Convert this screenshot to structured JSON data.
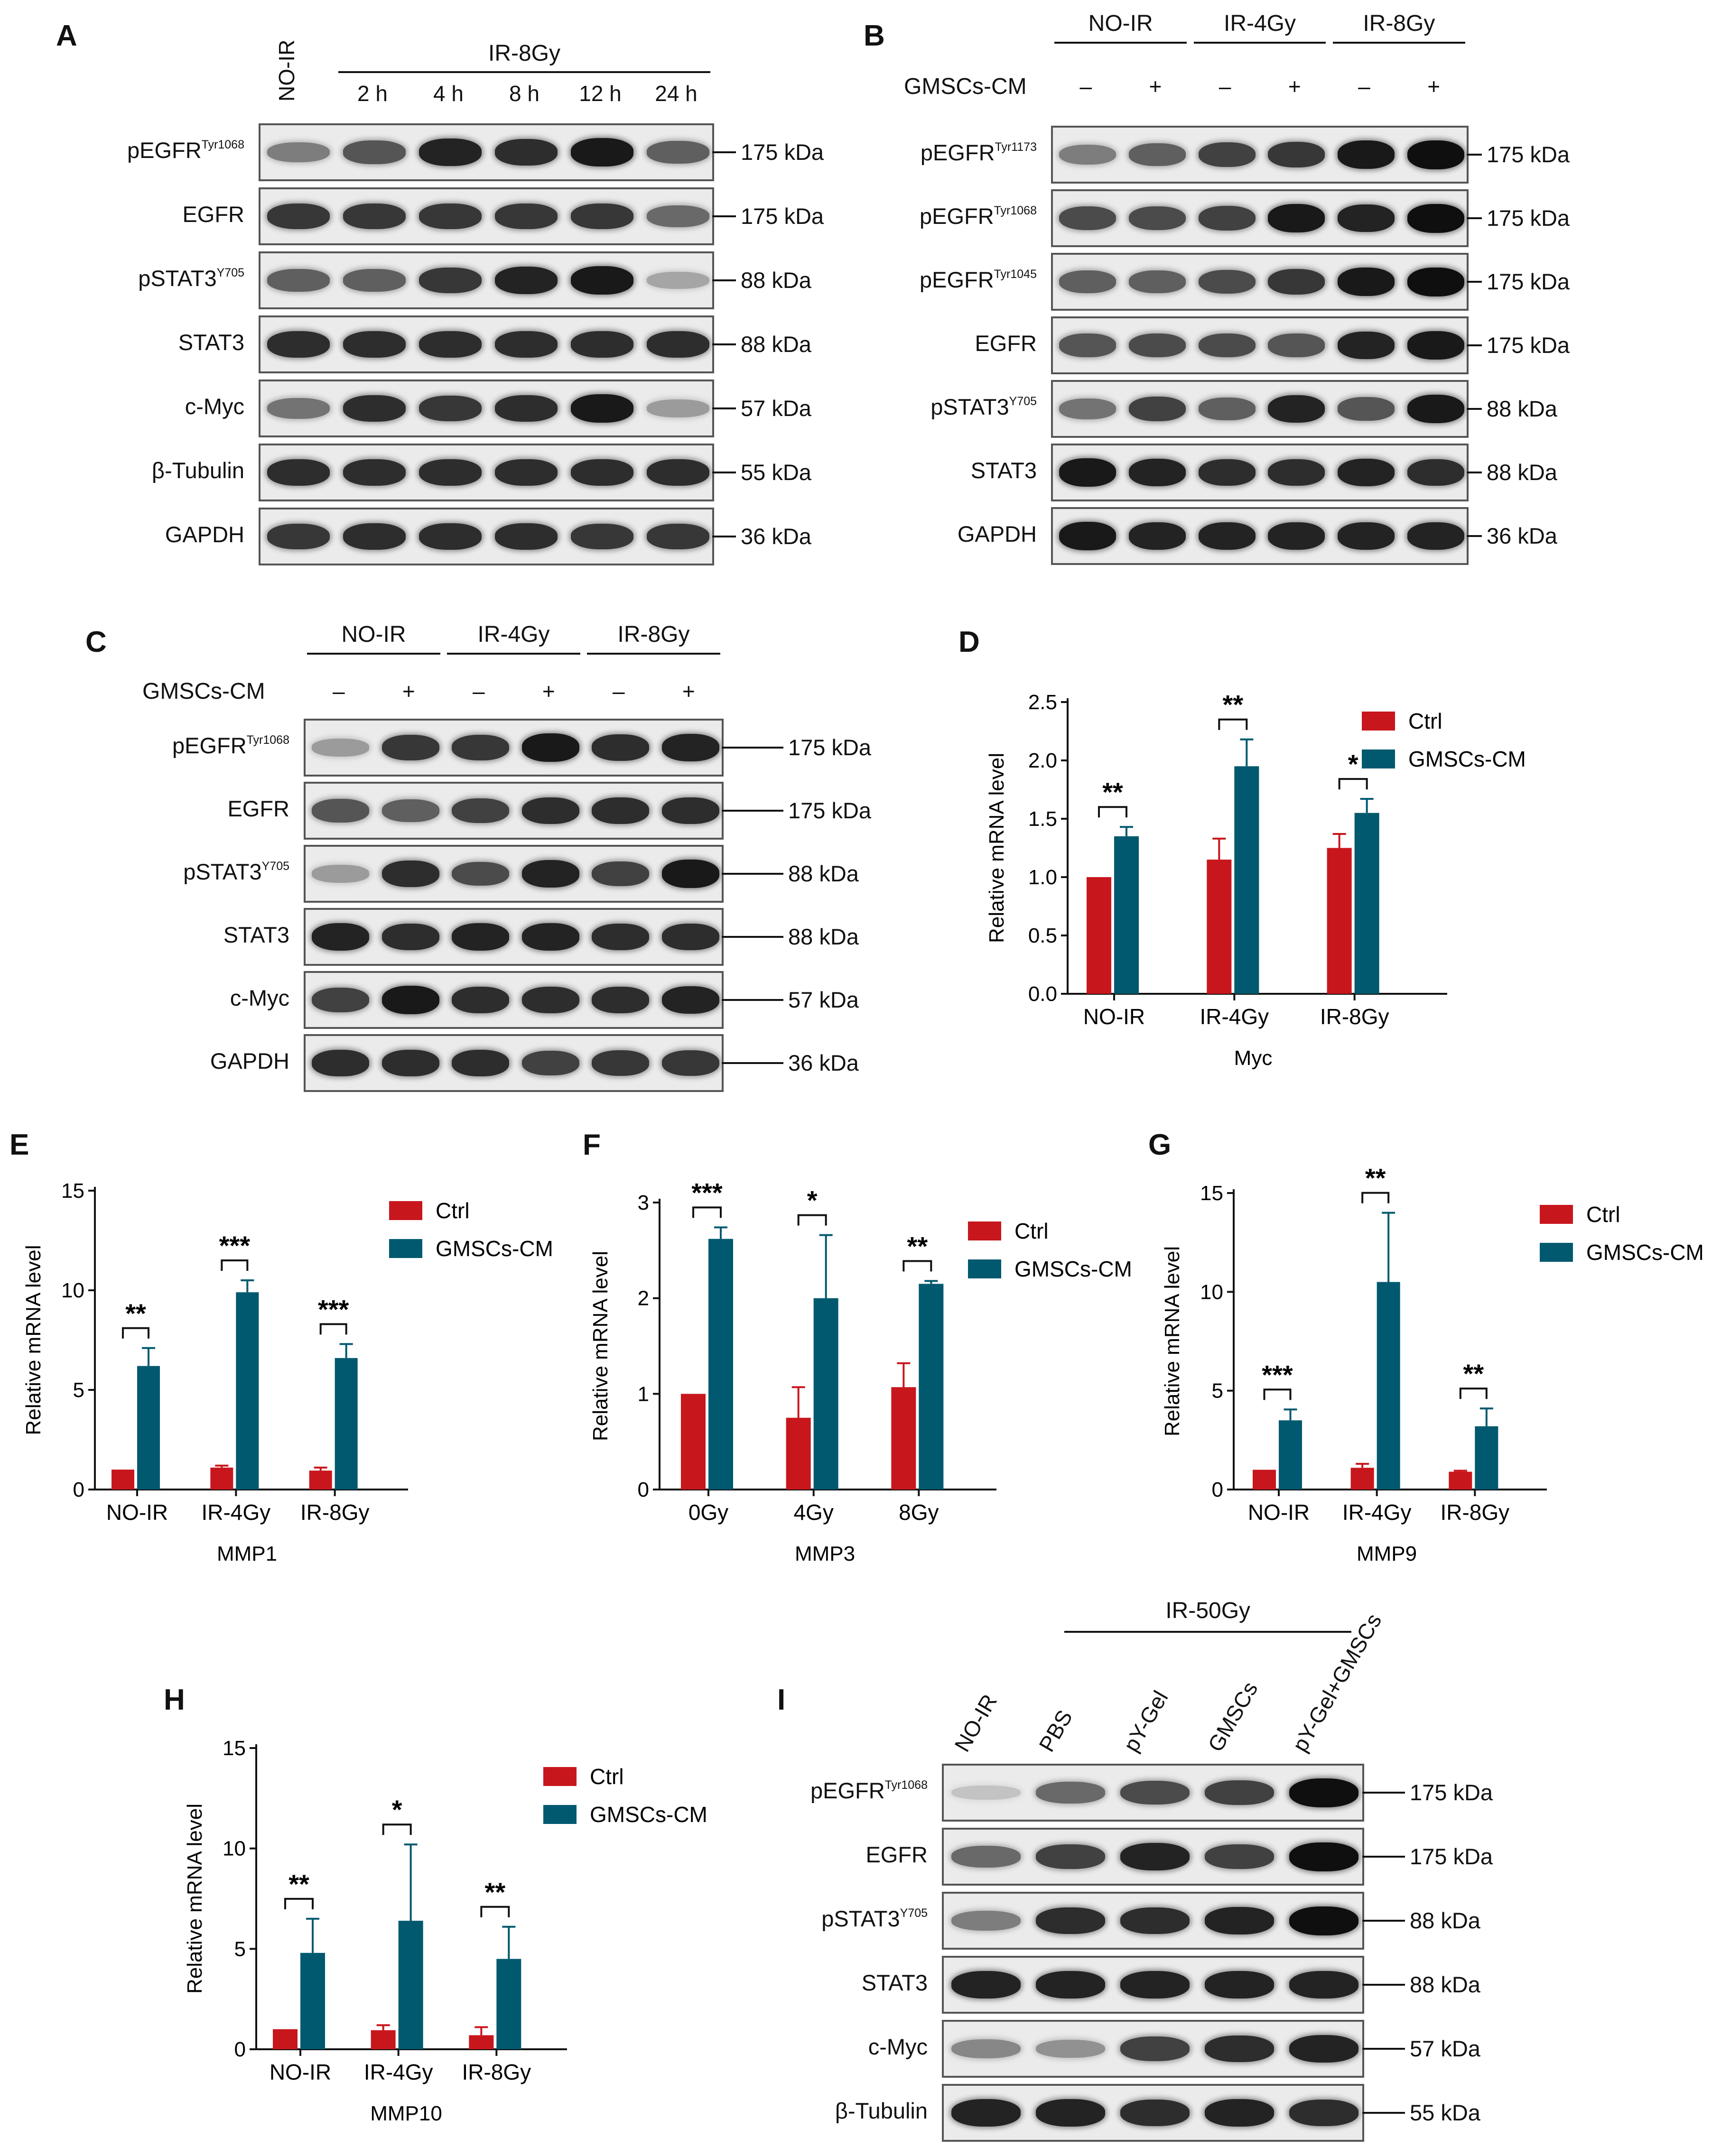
{
  "colors": {
    "ctrl": "#c8161d",
    "gmsc": "#00596e",
    "axis": "#111111",
    "blot_bg": "#ebebeb",
    "band_dark": "#161616"
  },
  "panel_letters": [
    "A",
    "B",
    "C",
    "D",
    "E",
    "F",
    "G",
    "H",
    "I"
  ],
  "panels": {
    "A": {
      "letter": "A",
      "no_ir": "NO-IR",
      "group": "IR-8Gy",
      "lanes": [
        "2 h",
        "4 h",
        "8 h",
        "12 h",
        "24 h"
      ],
      "rows": [
        {
          "name": "pEGFR",
          "sup": "Tyr1068",
          "marker": "175 kDa",
          "intensity": [
            0.45,
            0.65,
            0.9,
            0.85,
            0.95,
            0.6
          ]
        },
        {
          "name": "EGFR",
          "sup": "",
          "marker": "175 kDa",
          "intensity": [
            0.8,
            0.8,
            0.8,
            0.8,
            0.8,
            0.55
          ]
        },
        {
          "name": "pSTAT3",
          "sup": "Y705",
          "marker": "88 kDa",
          "intensity": [
            0.6,
            0.6,
            0.8,
            0.9,
            0.95,
            0.25
          ]
        },
        {
          "name": "STAT3",
          "sup": "",
          "marker": "88 kDa",
          "intensity": [
            0.85,
            0.85,
            0.85,
            0.85,
            0.85,
            0.85
          ]
        },
        {
          "name": "c-Myc",
          "sup": "",
          "marker": "57 kDa",
          "intensity": [
            0.5,
            0.85,
            0.8,
            0.85,
            0.95,
            0.3
          ]
        },
        {
          "name": "β-Tubulin",
          "sup": "",
          "marker": "55 kDa",
          "intensity": [
            0.85,
            0.85,
            0.85,
            0.85,
            0.85,
            0.85
          ]
        },
        {
          "name": "GAPDH",
          "sup": "",
          "marker": "36 kDa",
          "intensity": [
            0.8,
            0.85,
            0.85,
            0.85,
            0.8,
            0.8
          ]
        }
      ]
    },
    "B": {
      "letter": "B",
      "groups": [
        "NO-IR",
        "IR-4Gy",
        "IR-8Gy"
      ],
      "cm_label": "GMSCs-CM",
      "signs": [
        "–",
        "+",
        "–",
        "+",
        "–",
        "+"
      ],
      "rows": [
        {
          "name": "pEGFR",
          "sup": "Tyr1173",
          "marker": "175 kDa",
          "intensity": [
            0.45,
            0.6,
            0.75,
            0.8,
            0.95,
            1.0
          ]
        },
        {
          "name": "pEGFR",
          "sup": "Tyr1068",
          "marker": "175 kDa",
          "intensity": [
            0.7,
            0.7,
            0.75,
            0.95,
            0.9,
            1.0
          ]
        },
        {
          "name": "pEGFR",
          "sup": "Tyr1045",
          "marker": "175 kDa",
          "intensity": [
            0.6,
            0.6,
            0.7,
            0.8,
            0.95,
            1.0
          ]
        },
        {
          "name": "EGFR",
          "sup": "",
          "marker": "175 kDa",
          "intensity": [
            0.65,
            0.7,
            0.7,
            0.65,
            0.9,
            0.95
          ]
        },
        {
          "name": "pSTAT3",
          "sup": "Y705",
          "marker": "88 kDa",
          "intensity": [
            0.5,
            0.75,
            0.6,
            0.9,
            0.65,
            0.95
          ]
        },
        {
          "name": "STAT3",
          "sup": "",
          "marker": "88 kDa",
          "intensity": [
            0.95,
            0.9,
            0.85,
            0.85,
            0.9,
            0.85
          ]
        },
        {
          "name": "GAPDH",
          "sup": "",
          "marker": "36 kDa",
          "intensity": [
            0.95,
            0.9,
            0.9,
            0.9,
            0.9,
            0.9
          ]
        }
      ]
    },
    "C": {
      "letter": "C",
      "groups": [
        "NO-IR",
        "IR-4Gy",
        "IR-8Gy"
      ],
      "cm_label": "GMSCs-CM",
      "signs": [
        "–",
        "+",
        "–",
        "+",
        "–",
        "+"
      ],
      "rows": [
        {
          "name": "pEGFR",
          "sup": "Tyr1068",
          "marker": "175 kDa",
          "intensity": [
            0.3,
            0.8,
            0.8,
            0.95,
            0.85,
            0.9
          ]
        },
        {
          "name": "EGFR",
          "sup": "",
          "marker": "175 kDa",
          "intensity": [
            0.65,
            0.6,
            0.75,
            0.85,
            0.85,
            0.85
          ]
        },
        {
          "name": "pSTAT3",
          "sup": "Y705",
          "marker": "88 kDa",
          "intensity": [
            0.3,
            0.85,
            0.7,
            0.9,
            0.75,
            0.95
          ]
        },
        {
          "name": "STAT3",
          "sup": "",
          "marker": "88 kDa",
          "intensity": [
            0.9,
            0.85,
            0.9,
            0.9,
            0.85,
            0.85
          ]
        },
        {
          "name": "c-Myc",
          "sup": "",
          "marker": "57 kDa",
          "intensity": [
            0.75,
            0.95,
            0.85,
            0.85,
            0.85,
            0.9
          ]
        },
        {
          "name": "GAPDH",
          "sup": "",
          "marker": "36 kDa",
          "intensity": [
            0.85,
            0.85,
            0.85,
            0.75,
            0.8,
            0.8
          ]
        }
      ]
    },
    "I": {
      "letter": "I",
      "group": "IR-50Gy",
      "lanes": [
        "NO-IR",
        "PBS",
        "pY-Gel",
        "GMSCs",
        "pY-Gel+GMSCs"
      ],
      "rows": [
        {
          "name": "pEGFR",
          "sup": "Tyr1068",
          "marker": "175 kDa",
          "intensity": [
            0.1,
            0.55,
            0.7,
            0.75,
            1.0
          ]
        },
        {
          "name": "EGFR",
          "sup": "",
          "marker": "175 kDa",
          "intensity": [
            0.55,
            0.75,
            0.9,
            0.75,
            1.0
          ]
        },
        {
          "name": "pSTAT3",
          "sup": "Y705",
          "marker": "88 kDa",
          "intensity": [
            0.45,
            0.85,
            0.85,
            0.9,
            1.0
          ]
        },
        {
          "name": "STAT3",
          "sup": "",
          "marker": "88 kDa",
          "intensity": [
            0.9,
            0.9,
            0.9,
            0.9,
            0.9
          ]
        },
        {
          "name": "c-Myc",
          "sup": "",
          "marker": "57 kDa",
          "intensity": [
            0.4,
            0.35,
            0.75,
            0.85,
            0.9
          ]
        },
        {
          "name": "β-Tubulin",
          "sup": "",
          "marker": "55 kDa",
          "intensity": [
            0.9,
            0.9,
            0.85,
            0.9,
            0.85
          ]
        }
      ]
    }
  },
  "chart_data": [
    {
      "panel": "D",
      "type": "bar",
      "xlabel": "Myc",
      "ylabel": "Relative mRNA level",
      "categories": [
        "NO-IR",
        "IR-4Gy",
        "IR-8Gy"
      ],
      "ylim": [
        0,
        2.5
      ],
      "yticks": [
        "0.0",
        "0.5",
        "1.0",
        "1.5",
        "2.0",
        "2.5"
      ],
      "ytick_values": [
        0,
        0.5,
        1,
        1.5,
        2,
        2.5
      ],
      "series": [
        {
          "name": "Ctrl",
          "values": [
            1.0,
            1.15,
            1.25
          ],
          "errors": [
            0,
            0.18,
            0.12
          ]
        },
        {
          "name": "GMSCs-CM",
          "values": [
            1.35,
            1.95,
            1.55
          ],
          "errors": [
            0.08,
            0.23,
            0.12
          ]
        }
      ],
      "significance": [
        "**",
        "**",
        "*"
      ],
      "legend": [
        "Ctrl",
        "GMSCs-CM"
      ],
      "legend_position": "top-right"
    },
    {
      "panel": "E",
      "type": "bar",
      "xlabel": "MMP1",
      "ylabel": "Relative mRNA level",
      "categories": [
        "NO-IR",
        "IR-4Gy",
        "IR-8Gy"
      ],
      "ylim": [
        0,
        15
      ],
      "yticks": [
        "0",
        "5",
        "10",
        "15"
      ],
      "ytick_values": [
        0,
        5,
        10,
        15
      ],
      "series": [
        {
          "name": "Ctrl",
          "values": [
            1.0,
            1.1,
            0.95
          ],
          "errors": [
            0,
            0.1,
            0.15
          ]
        },
        {
          "name": "GMSCs-CM",
          "values": [
            6.2,
            9.9,
            6.6
          ],
          "errors": [
            0.9,
            0.6,
            0.7
          ]
        }
      ],
      "significance": [
        "**",
        "***",
        "***"
      ],
      "legend": [
        "Ctrl",
        "GMSCs-CM"
      ],
      "legend_position": "top-right"
    },
    {
      "panel": "F",
      "type": "bar",
      "xlabel": "MMP3",
      "ylabel": "Relative mRNA level",
      "categories": [
        "0Gy",
        "4Gy",
        "8Gy"
      ],
      "ylim": [
        0,
        3
      ],
      "yticks": [
        "0",
        "1",
        "2",
        "3"
      ],
      "ytick_values": [
        0,
        1,
        2,
        3
      ],
      "series": [
        {
          "name": "Ctrl",
          "values": [
            1.0,
            0.75,
            1.07
          ],
          "errors": [
            0,
            0.32,
            0.25
          ]
        },
        {
          "name": "GMSCs-CM",
          "values": [
            2.62,
            2.0,
            2.15
          ],
          "errors": [
            0.12,
            0.66,
            0.03
          ]
        }
      ],
      "significance": [
        "***",
        "*",
        "**"
      ],
      "legend": [
        "Ctrl",
        "GMSCs-CM"
      ],
      "legend_position": "top-right"
    },
    {
      "panel": "G",
      "type": "bar",
      "xlabel": "MMP9",
      "ylabel": "Relative mRNA level",
      "categories": [
        "NO-IR",
        "IR-4Gy",
        "IR-8Gy"
      ],
      "ylim": [
        0,
        15
      ],
      "yticks": [
        "0",
        "5",
        "10",
        "15"
      ],
      "ytick_values": [
        0,
        5,
        10,
        15
      ],
      "series": [
        {
          "name": "Ctrl",
          "values": [
            1.0,
            1.1,
            0.9
          ],
          "errors": [
            0,
            0.2,
            0.05
          ]
        },
        {
          "name": "GMSCs-CM",
          "values": [
            3.5,
            10.5,
            3.2
          ],
          "errors": [
            0.55,
            3.5,
            0.9
          ]
        }
      ],
      "significance": [
        "***",
        "**",
        "**"
      ],
      "legend": [
        "Ctrl",
        "GMSCs-CM"
      ],
      "legend_position": "top-right"
    },
    {
      "panel": "H",
      "type": "bar",
      "xlabel": "MMP10",
      "ylabel": "Relative mRNA level",
      "categories": [
        "NO-IR",
        "IR-4Gy",
        "IR-8Gy"
      ],
      "ylim": [
        0,
        15
      ],
      "yticks": [
        "0",
        "5",
        "10",
        "15"
      ],
      "ytick_values": [
        0,
        5,
        10,
        15
      ],
      "series": [
        {
          "name": "Ctrl",
          "values": [
            1.0,
            0.95,
            0.7
          ],
          "errors": [
            0,
            0.25,
            0.4
          ]
        },
        {
          "name": "GMSCs-CM",
          "values": [
            4.8,
            6.4,
            4.5
          ],
          "errors": [
            1.7,
            3.8,
            1.6
          ]
        }
      ],
      "significance": [
        "**",
        "*",
        "**"
      ],
      "legend": [
        "Ctrl",
        "GMSCs-CM"
      ],
      "legend_position": "top-right"
    }
  ]
}
